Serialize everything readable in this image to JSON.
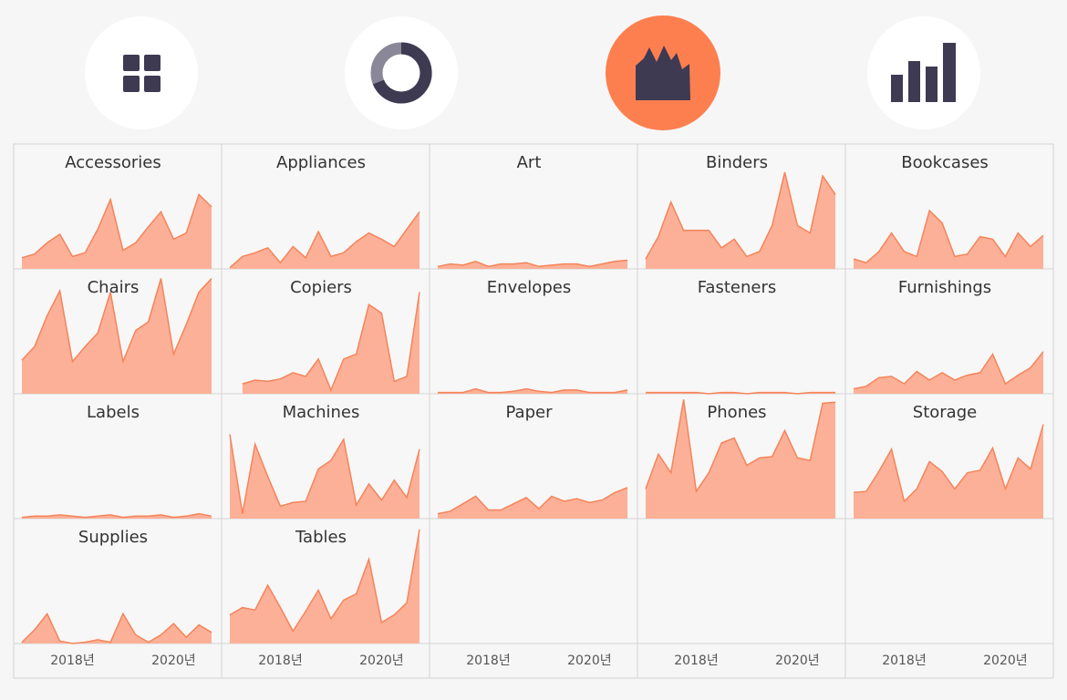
{
  "chart_data": {
    "type": "area",
    "color": "#fcb097",
    "line_color": "#f5845a",
    "x": [
      2017,
      2017.25,
      2017.5,
      2017.75,
      2018,
      2018.25,
      2018.5,
      2018.75,
      2019,
      2019.25,
      2019.5,
      2019.75,
      2020,
      2020.25,
      2020.5,
      2020.75
    ],
    "xlim": [
      2017,
      2020.75
    ],
    "xticks": [
      {
        "value": 2018,
        "label": "2018년"
      },
      {
        "value": 2020,
        "label": "2020년"
      }
    ],
    "ylim": [
      0,
      100
    ],
    "series": [
      {
        "name": "Accessories",
        "values": [
          9,
          12,
          21,
          28,
          10,
          13,
          32,
          56,
          15,
          21,
          34,
          46,
          24,
          29,
          60,
          50
        ]
      },
      {
        "name": "Appliances",
        "values": [
          1,
          10,
          13,
          17,
          5,
          18,
          9,
          30,
          10,
          13,
          22,
          29,
          24,
          18,
          32,
          46
        ]
      },
      {
        "name": "Art",
        "values": [
          2,
          4,
          3,
          6,
          2,
          4,
          4,
          5,
          2,
          3,
          4,
          4,
          2,
          4,
          6,
          7
        ]
      },
      {
        "name": "Binders",
        "values": [
          8,
          26,
          54,
          31,
          31,
          31,
          17,
          24,
          10,
          14,
          35,
          78,
          35,
          29,
          75,
          60
        ]
      },
      {
        "name": "Bookcases",
        "values": [
          8,
          5,
          14,
          29,
          14,
          10,
          47,
          37,
          10,
          12,
          26,
          24,
          10,
          29,
          18,
          27
        ]
      },
      {
        "name": "Chairs",
        "values": [
          27,
          38,
          63,
          83,
          26,
          38,
          49,
          82,
          26,
          51,
          58,
          93,
          32,
          56,
          82,
          93
        ]
      },
      {
        "name": "Copiers",
        "values": [
          null,
          8,
          11,
          10,
          12,
          17,
          14,
          28,
          3,
          28,
          32,
          72,
          65,
          10,
          14,
          82
        ]
      },
      {
        "name": "Envelopes",
        "values": [
          1,
          1,
          1,
          4,
          1,
          1,
          2,
          4,
          2,
          1,
          3,
          3,
          1,
          1,
          1,
          3
        ]
      },
      {
        "name": "Fasteners",
        "values": [
          1,
          1,
          1,
          1,
          1,
          0,
          1,
          1,
          0,
          1,
          1,
          1,
          0,
          1,
          1,
          1
        ]
      },
      {
        "name": "Furnishings",
        "values": [
          4,
          6,
          13,
          14,
          8,
          18,
          11,
          17,
          11,
          15,
          17,
          32,
          8,
          15,
          21,
          34
        ]
      },
      {
        "name": "Labels",
        "values": [
          1,
          2,
          2,
          3,
          2,
          1,
          2,
          3,
          1,
          2,
          2,
          3,
          1,
          2,
          4,
          2
        ]
      },
      {
        "name": "Machines",
        "values": [
          68,
          4,
          60,
          34,
          10,
          13,
          14,
          40,
          47,
          64,
          11,
          28,
          15,
          31,
          17,
          56
        ]
      },
      {
        "name": "Paper",
        "values": [
          4,
          6,
          12,
          18,
          7,
          7,
          12,
          17,
          8,
          18,
          14,
          16,
          13,
          15,
          21,
          25
        ]
      },
      {
        "name": "Phones",
        "values": [
          24,
          52,
          37,
          96,
          22,
          37,
          61,
          65,
          43,
          49,
          50,
          71,
          49,
          47,
          93,
          94
        ]
      },
      {
        "name": "Storage",
        "values": [
          21,
          22,
          38,
          56,
          14,
          24,
          46,
          38,
          24,
          37,
          39,
          57,
          24,
          49,
          40,
          76
        ]
      },
      {
        "name": "Supplies",
        "values": [
          1,
          11,
          24,
          2,
          0,
          1,
          3,
          1,
          24,
          7,
          1,
          7,
          16,
          5,
          15,
          9
        ]
      },
      {
        "name": "Tables",
        "values": [
          23,
          29,
          27,
          47,
          29,
          10,
          26,
          43,
          20,
          35,
          40,
          68,
          17,
          23,
          33,
          92
        ]
      }
    ]
  }
}
